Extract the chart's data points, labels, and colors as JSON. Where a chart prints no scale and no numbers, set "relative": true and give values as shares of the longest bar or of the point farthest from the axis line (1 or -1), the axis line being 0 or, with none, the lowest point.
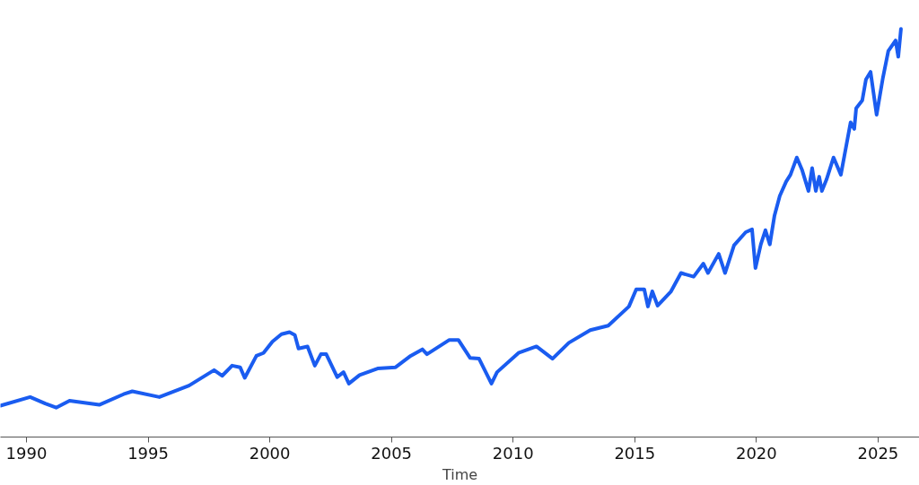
{
  "chart_data": {
    "type": "line",
    "xlabel": "Time",
    "relative": true,
    "grid": false,
    "line_style": "solid",
    "xlim": [
      1988.93,
      2026.7
    ],
    "xticks": [
      1990,
      1995,
      2000,
      2005,
      2010,
      2015,
      2020,
      2025
    ],
    "series": [
      {
        "color": "#1a5cf0",
        "x": [
          1988.93,
          1990.15,
          1990.77,
          1991.22,
          1991.77,
          1992.99,
          1993.99,
          1994.35,
          1995.46,
          1996.68,
          1997.71,
          1998.04,
          1998.45,
          1998.78,
          1998.97,
          1999.45,
          1999.74,
          2000.11,
          2000.48,
          2000.81,
          2001.03,
          2001.18,
          2001.55,
          2001.85,
          2002.1,
          2002.32,
          2002.77,
          2003.03,
          2003.25,
          2003.69,
          2004.43,
          2005.17,
          2005.79,
          2006.27,
          2006.46,
          2007.38,
          2007.75,
          2008.23,
          2008.6,
          2009.11,
          2009.34,
          2010.22,
          2010.96,
          2011.62,
          2012.29,
          2013.17,
          2013.91,
          2014.76,
          2015.06,
          2015.39,
          2015.54,
          2015.72,
          2015.94,
          2016.49,
          2016.9,
          2017.42,
          2017.82,
          2018.01,
          2018.45,
          2018.71,
          2019.08,
          2019.56,
          2019.82,
          2019.96,
          2020.18,
          2020.37,
          2020.55,
          2020.74,
          2020.96,
          2021.22,
          2021.4,
          2021.66,
          2021.88,
          2022.14,
          2022.29,
          2022.44,
          2022.58,
          2022.69,
          2022.88,
          2023.17,
          2023.47,
          2023.87,
          2024.02,
          2024.1,
          2024.35,
          2024.5,
          2024.69,
          2024.94,
          2025.2,
          2025.42,
          2025.72,
          2025.83,
          2025.94
        ],
        "values": [
          0.077,
          0.098,
          0.082,
          0.072,
          0.089,
          0.079,
          0.105,
          0.112,
          0.098,
          0.126,
          0.164,
          0.15,
          0.175,
          0.171,
          0.145,
          0.199,
          0.206,
          0.234,
          0.252,
          0.257,
          0.25,
          0.217,
          0.222,
          0.175,
          0.203,
          0.203,
          0.147,
          0.159,
          0.131,
          0.152,
          0.168,
          0.171,
          0.199,
          0.215,
          0.203,
          0.238,
          0.238,
          0.194,
          0.192,
          0.131,
          0.159,
          0.206,
          0.222,
          0.192,
          0.231,
          0.262,
          0.273,
          0.32,
          0.362,
          0.362,
          0.32,
          0.357,
          0.322,
          0.357,
          0.402,
          0.393,
          0.425,
          0.402,
          0.449,
          0.402,
          0.47,
          0.502,
          0.509,
          0.414,
          0.472,
          0.507,
          0.472,
          0.542,
          0.591,
          0.626,
          0.643,
          0.685,
          0.654,
          0.603,
          0.659,
          0.603,
          0.638,
          0.603,
          0.631,
          0.685,
          0.643,
          0.771,
          0.755,
          0.806,
          0.825,
          0.876,
          0.895,
          0.79,
          0.881,
          0.946,
          0.972,
          0.932,
          1
        ]
      }
    ]
  }
}
